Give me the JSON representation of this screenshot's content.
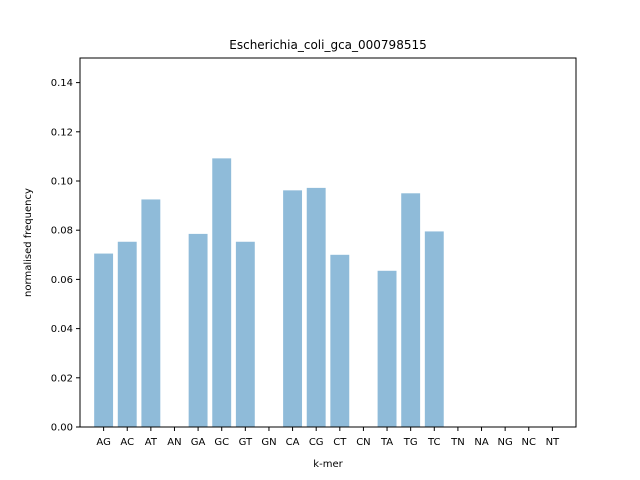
{
  "chart_data": {
    "type": "bar",
    "title": "Escherichia_coli_gca_000798515",
    "xlabel": "k-mer",
    "ylabel": "normalised frequency",
    "categories": [
      "AG",
      "AC",
      "AT",
      "AN",
      "GA",
      "GC",
      "GT",
      "GN",
      "CA",
      "CG",
      "CT",
      "CN",
      "TA",
      "TG",
      "TC",
      "TN",
      "NA",
      "NG",
      "NC",
      "NT"
    ],
    "values": [
      0.0705,
      0.0753,
      0.0925,
      0.0,
      0.0785,
      0.1092,
      0.0753,
      0.0,
      0.0962,
      0.0972,
      0.07,
      0.0,
      0.0635,
      0.095,
      0.0795,
      0.0,
      0.0,
      0.0,
      0.0,
      0.0
    ],
    "ylim": [
      0,
      0.15
    ],
    "yticks": [
      0.0,
      0.02,
      0.04,
      0.06,
      0.08,
      0.1,
      0.12,
      0.14
    ],
    "ytick_labels": [
      "0.00",
      "0.02",
      "0.04",
      "0.06",
      "0.08",
      "0.10",
      "0.12",
      "0.14"
    ],
    "grid": false,
    "colors": {
      "bar": "#1f77b4",
      "bar_alpha": 0.5,
      "axes": "#000000"
    }
  }
}
